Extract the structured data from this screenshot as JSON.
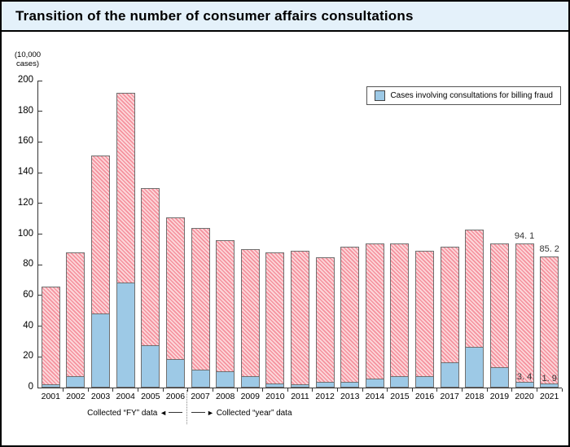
{
  "window": {
    "title": "Transition of the number of consumer affairs consultations"
  },
  "y_axis_unit": {
    "line1": "(10,000",
    "line2": "cases)"
  },
  "legend": {
    "label": "Cases involving consultations for billing fraud"
  },
  "footnote": {
    "fy_label": "Collected “FY” data",
    "year_label": "Collected “year” data",
    "left_arrow": "◄",
    "right_arrow": "►"
  },
  "colors": {
    "title_bg": "#e4f1fa",
    "hatch_main": "#f5929e",
    "hatch_light": "#fcd7da",
    "fraud_fill": "#9dc9e6",
    "bar_border": "#6f6f6f",
    "axis": "#333333"
  },
  "chart_data": {
    "type": "bar",
    "stacked": true,
    "title": "Transition of the number of consumer affairs consultations",
    "unit": "(10,000 cases)",
    "categories": [
      "2001",
      "2002",
      "2003",
      "2004",
      "2005",
      "2006",
      "2007",
      "2008",
      "2009",
      "2010",
      "2011",
      "2012",
      "2013",
      "2014",
      "2015",
      "2016",
      "2017",
      "2018",
      "2019",
      "2020",
      "2021"
    ],
    "totals": [
      66,
      88,
      151,
      192,
      130,
      111,
      104,
      96,
      90,
      88,
      89,
      85,
      92,
      94,
      94,
      89,
      92,
      103,
      94,
      94.1,
      85.2
    ],
    "series": [
      {
        "name": "Cases involving consultations for billing fraud",
        "values": [
          1.5,
          7,
          48,
          68,
          27,
          18,
          11,
          10,
          7,
          2,
          1.5,
          3,
          3,
          5.5,
          7,
          7,
          16,
          26,
          12.5,
          3.4,
          1.9
        ]
      }
    ],
    "ylim": [
      0,
      200
    ],
    "yticks": [
      0,
      20,
      40,
      60,
      80,
      100,
      120,
      140,
      160,
      180,
      200
    ],
    "grid": false,
    "legend_position": "upper right",
    "value_labels": [
      {
        "category": "2020",
        "text": "94. 1",
        "applies_to": "total"
      },
      {
        "category": "2021",
        "text": "85. 2",
        "applies_to": "total"
      },
      {
        "category": "2020",
        "text": "3. 4",
        "applies_to": "fraud"
      },
      {
        "category": "2021",
        "text": "1. 9",
        "applies_to": "fraud"
      }
    ],
    "divider_after_category": "2006"
  }
}
